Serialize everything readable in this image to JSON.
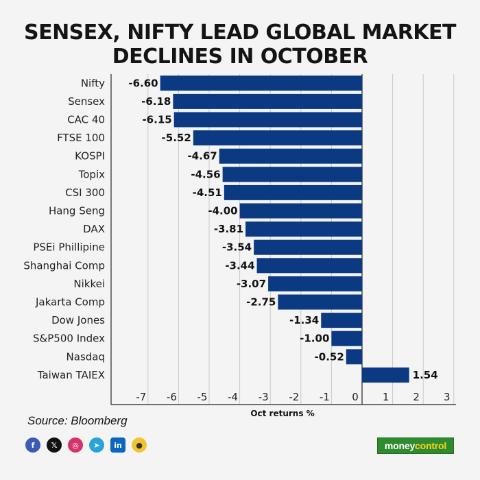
{
  "title_line1": "SENSEX, NIFTY LEAD GLOBAL MARKET",
  "title_line2": "DECLINES IN OCTOBER",
  "source": "Source: Bloomberg",
  "brand_part1": "money",
  "brand_part2": "control",
  "socials": [
    "facebook-icon",
    "x-icon",
    "instagram-icon",
    "telegram-icon",
    "linkedin-icon",
    "koo-icon"
  ],
  "colors": {
    "bar": "#0b3a82",
    "grid": "#c9c9c9",
    "axis": "#222222",
    "brand": "#2e8b2e"
  },
  "chart_data": {
    "type": "bar",
    "orientation": "horizontal",
    "title": "SENSEX, NIFTY LEAD GLOBAL MARKET DECLINES IN OCTOBER",
    "xlabel": "Oct returns %",
    "ylabel": "",
    "xlim": [
      -8,
      3
    ],
    "xticks": [
      -7,
      -6,
      -5,
      -4,
      -3,
      -2,
      -1,
      0,
      1,
      2,
      3
    ],
    "grid": "vertical",
    "categories": [
      "Nifty",
      "Sensex",
      "CAC 40",
      "FTSE 100",
      "KOSPI",
      "Topix",
      "CSI 300",
      "Hang Seng",
      "DAX",
      "PSEi Phillipine",
      "Shanghai Comp",
      "Nikkei",
      "Jakarta Comp",
      "Dow Jones",
      "S&P500 Index",
      "Nasdaq",
      "Taiwan TAIEX"
    ],
    "values": [
      -6.6,
      -6.18,
      -6.15,
      -5.52,
      -4.67,
      -4.56,
      -4.51,
      -4.0,
      -3.81,
      -3.54,
      -3.44,
      -3.07,
      -2.75,
      -1.34,
      -1.0,
      -0.52,
      1.54
    ],
    "value_labels": [
      "-6.60",
      "-6.18",
      "-6.15",
      "-5.52",
      "-4.67",
      "-4.56",
      "-4.51",
      "-4.00",
      "-3.81",
      "-3.54",
      "-3.44",
      "-3.07",
      "-2.75",
      "-1.34",
      "-1.00",
      "-0.52",
      "1.54"
    ]
  }
}
